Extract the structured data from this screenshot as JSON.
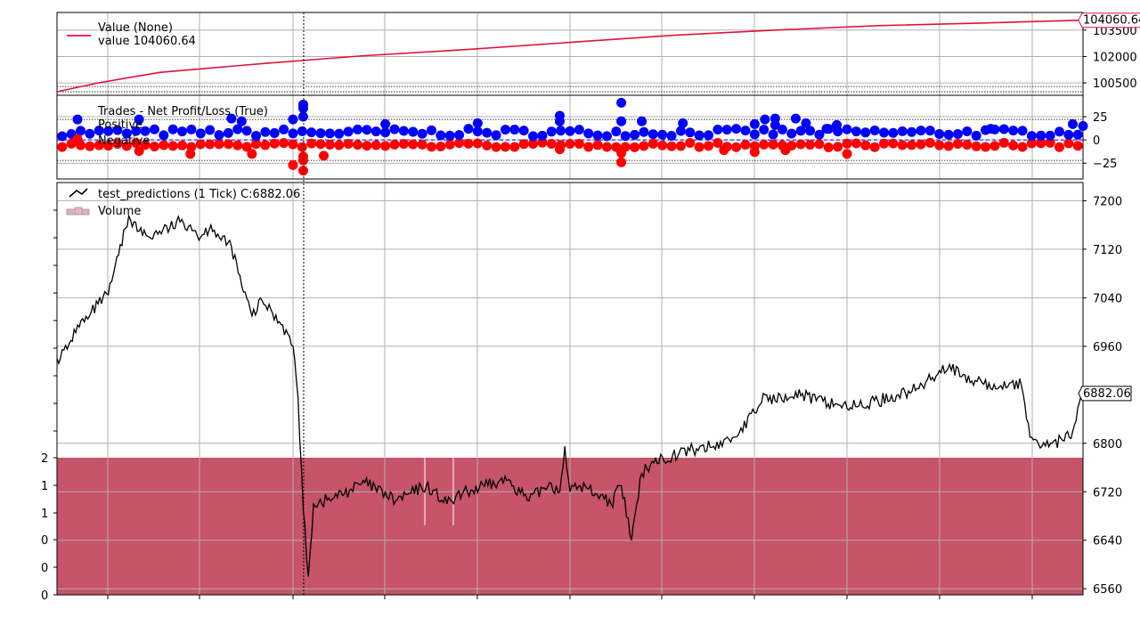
{
  "chart_data": [
    {
      "type": "line",
      "panel": "broker-value",
      "legend": {
        "series_name": "Value (None)",
        "value_text": "value 104060.64",
        "placement": "top-left"
      },
      "ytick_labels": [
        "103500",
        "102000",
        "100500"
      ],
      "yticks": [
        103500,
        102000,
        100500
      ],
      "ylim": [
        99800,
        104500
      ],
      "reference_lines": [
        100000,
        100300
      ],
      "last_value_label": "104060.64",
      "series": [
        {
          "name": "Value (None)",
          "color": "#dc143c",
          "x": [
            0,
            4,
            10,
            20,
            30,
            40,
            50,
            60,
            70,
            80,
            90,
            100
          ],
          "values": [
            100000,
            100500,
            101100,
            101600,
            102050,
            102400,
            102800,
            103200,
            103500,
            103750,
            103900,
            104060.64
          ]
        }
      ],
      "grid": true
    },
    {
      "type": "scatter",
      "panel": "trades",
      "legend": {
        "title": "Trades - Net Profit/Loss (True)",
        "entries": [
          "Positive",
          "Negative"
        ],
        "placement": "top-left"
      },
      "ytick_labels": [
        "25",
        "0",
        "−25"
      ],
      "yticks": [
        25,
        0,
        -25
      ],
      "ylim": [
        -42,
        48
      ],
      "reference_lines": [
        0
      ],
      "positive_color": "#0000ff",
      "negative_color": "#ff0000",
      "highlighted_points": {
        "positive": [
          [
            2,
            22
          ],
          [
            8,
            22
          ],
          [
            17,
            23
          ],
          [
            18,
            20
          ],
          [
            23,
            22
          ],
          [
            24,
            34
          ],
          [
            24,
            38
          ],
          [
            24,
            25
          ],
          [
            32,
            17
          ],
          [
            41,
            18
          ],
          [
            49,
            26
          ],
          [
            49,
            20
          ],
          [
            55,
            40
          ],
          [
            55,
            20
          ],
          [
            57,
            20
          ],
          [
            61,
            18
          ],
          [
            68,
            17
          ],
          [
            69,
            22
          ],
          [
            70,
            16
          ],
          [
            70,
            23
          ],
          [
            72,
            23
          ],
          [
            73,
            18
          ],
          [
            75,
            12
          ],
          [
            76,
            16
          ],
          [
            91,
            12
          ],
          [
            99,
            17
          ],
          [
            100,
            15
          ]
        ],
        "negative": [
          [
            2,
            1
          ],
          [
            8,
            -12
          ],
          [
            13,
            -15
          ],
          [
            19,
            -15
          ],
          [
            23,
            -27
          ],
          [
            24,
            -18
          ],
          [
            24,
            -22
          ],
          [
            24,
            -33
          ],
          [
            26,
            -17
          ],
          [
            49,
            -10
          ],
          [
            55,
            -14
          ],
          [
            55,
            -24
          ],
          [
            65,
            -11
          ],
          [
            68,
            -13
          ],
          [
            71,
            -11
          ],
          [
            77,
            -15
          ]
        ]
      },
      "grid": true
    },
    {
      "type": "line",
      "panel": "price",
      "legend": {
        "series_name": "test_predictions (1 Tick) C:6882.06",
        "volume_label": "Volume",
        "placement": "top-left"
      },
      "ytick_labels": [
        "7200",
        "7120",
        "7040",
        "6960",
        "6800",
        "6720",
        "6640",
        "6560"
      ],
      "yticks": [
        7200,
        7120,
        7040,
        6960,
        6800,
        6720,
        6640,
        6560
      ],
      "ylim": [
        6550,
        7230
      ],
      "volume_ytick_labels": [
        "2",
        "1",
        "1",
        "0",
        "0",
        "0"
      ],
      "last_value_label": "6882.06",
      "cursor_x": 23,
      "series": [
        {
          "name": "test_predictions (1 Tick) C:6882.06",
          "color": "#000000",
          "x": [
            0,
            1,
            2,
            3,
            4,
            5,
            6,
            7,
            8,
            9,
            10,
            11,
            12,
            13,
            14,
            15,
            16,
            17,
            18,
            19,
            20,
            21,
            22,
            23,
            23.5,
            24,
            24.5,
            25,
            27,
            30,
            33,
            36,
            38,
            40,
            42,
            44,
            46,
            48,
            49,
            49.5,
            50,
            51,
            53,
            54,
            55,
            56,
            57,
            58,
            60,
            62,
            64,
            66,
            68,
            69,
            70,
            71,
            72,
            74,
            76,
            78,
            80,
            82,
            84,
            86,
            87,
            88,
            89,
            90,
            91,
            92,
            93,
            94,
            94.5,
            95,
            96,
            97,
            98,
            99,
            100
          ],
          "values": [
            6940,
            6955,
            6995,
            7005,
            7030,
            7045,
            7110,
            7175,
            7150,
            7140,
            7150,
            7155,
            7165,
            7160,
            7140,
            7160,
            7135,
            7125,
            7060,
            7010,
            7035,
            7015,
            6995,
            6960,
            6875,
            6690,
            6580,
            6700,
            6710,
            6735,
            6705,
            6730,
            6700,
            6720,
            6730,
            6740,
            6705,
            6735,
            6720,
            6795,
            6720,
            6730,
            6715,
            6700,
            6730,
            6640,
            6750,
            6770,
            6780,
            6790,
            6795,
            6810,
            6850,
            6880,
            6870,
            6880,
            6885,
            6870,
            6865,
            6860,
            6870,
            6880,
            6890,
            6920,
            6930,
            6910,
            6900,
            6905,
            6890,
            6895,
            6900,
            6895,
            6840,
            6810,
            6795,
            6800,
            6805,
            6820,
            6882.06
          ]
        }
      ],
      "volume": {
        "name": "Volume",
        "color": "#c75468",
        "value": 2
      },
      "grid": true
    }
  ]
}
